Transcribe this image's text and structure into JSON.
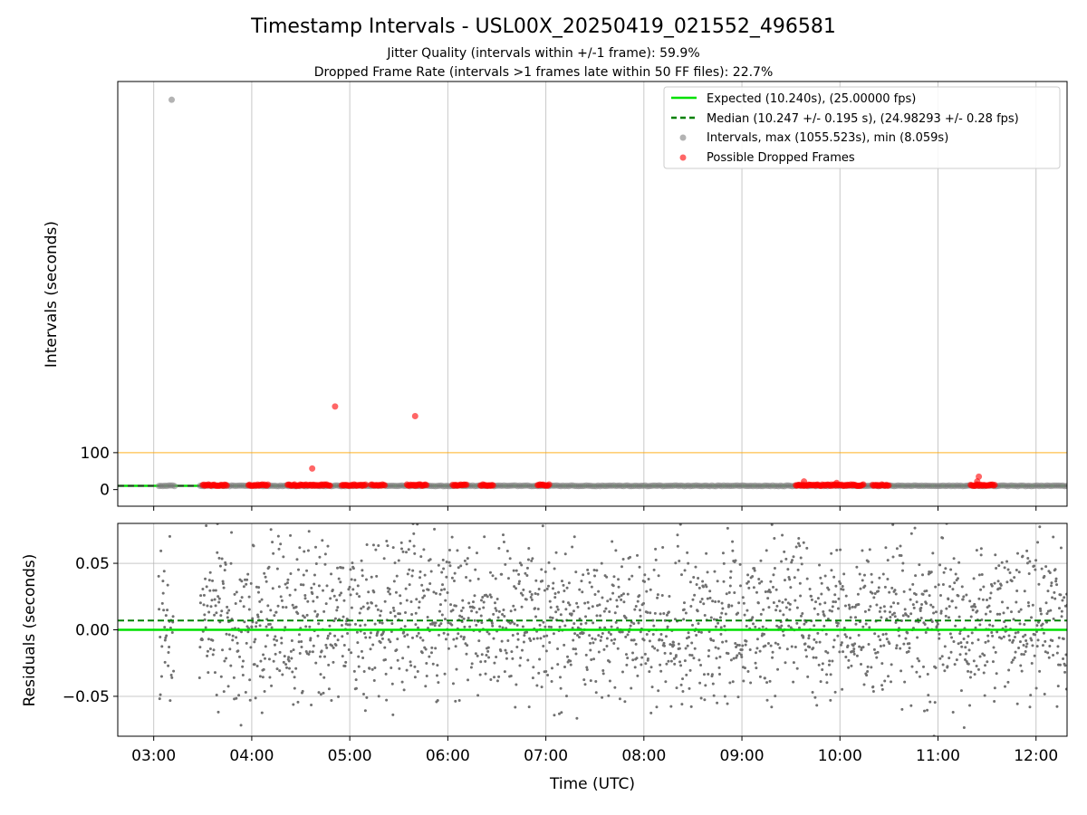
{
  "figure": {
    "title": "Timestamp Intervals - USL00X_20250419_021552_496581",
    "subtitle_1": "Jitter Quality (intervals within +/-1 frame): 59.9%",
    "subtitle_2": "Dropped Frame Rate (intervals >1 frames late within 50 FF files): 22.7%"
  },
  "colors": {
    "expected": "#00e000",
    "median": "#008000",
    "intervals": "#808080",
    "dropped": "#ff0000",
    "threshold": "#ffa500",
    "grid": "#b0b0b0"
  },
  "chart_data": [
    {
      "type": "scatter",
      "ylabel": "Intervals (seconds)",
      "xlim": [
        "02:38",
        "12:19"
      ],
      "ylim": [
        -45,
        1105
      ],
      "yticks": [
        0,
        100
      ],
      "ytick_labels": [
        "0",
        "100"
      ],
      "xticks": [
        "03:00",
        "04:00",
        "05:00",
        "06:00",
        "07:00",
        "08:00",
        "09:00",
        "10:00",
        "11:00",
        "12:00"
      ],
      "grid": "x",
      "legend": {
        "position": "top-right",
        "entries": [
          {
            "label": "Expected (10.240s), (25.00000 fps)",
            "style": "solid-line",
            "color": "#00e000"
          },
          {
            "label": "Median (10.247 +/- 0.195 s), (24.98293 +/- 0.28 fps)",
            "style": "dashed-line",
            "color": "#008000"
          },
          {
            "label": "Intervals, max (1055.523s), min (8.059s)",
            "style": "marker",
            "color": "#808080"
          },
          {
            "label": "Possible Dropped Frames",
            "style": "marker",
            "color": "#ff0000"
          }
        ]
      },
      "expected_interval": 10.24,
      "median_interval": 10.247,
      "threshold_line": 100,
      "intervals_max": {
        "x": "03:11",
        "y": 1055.523
      },
      "intervals_min": 8.059,
      "dropped_points": [
        {
          "x": "04:51",
          "y": 225
        },
        {
          "x": "05:40",
          "y": 199
        },
        {
          "x": "04:37",
          "y": 57
        },
        {
          "x": "09:38",
          "y": 22
        },
        {
          "x": "11:25",
          "y": 35
        },
        {
          "x": "11:24",
          "y": 22
        },
        {
          "x": "09:58",
          "y": 18
        }
      ],
      "dropped_clusters": [
        {
          "from": "03:30",
          "to": "03:45"
        },
        {
          "from": "03:58",
          "to": "04:10"
        },
        {
          "from": "04:22",
          "to": "04:48"
        },
        {
          "from": "04:55",
          "to": "05:10"
        },
        {
          "from": "05:13",
          "to": "05:22"
        },
        {
          "from": "05:35",
          "to": "05:47"
        },
        {
          "from": "06:03",
          "to": "06:12"
        },
        {
          "from": "06:20",
          "to": "06:28"
        },
        {
          "from": "06:55",
          "to": "07:02"
        },
        {
          "from": "09:33",
          "to": "10:15"
        },
        {
          "from": "10:20",
          "to": "10:30"
        },
        {
          "from": "11:20",
          "to": "11:35"
        }
      ]
    },
    {
      "type": "scatter",
      "ylabel": "Residuals (seconds)",
      "xlabel": "Time (UTC)",
      "xlim": [
        "02:38",
        "12:19"
      ],
      "ylim": [
        -0.08,
        0.08
      ],
      "yticks": [
        0.05,
        0.0,
        -0.05
      ],
      "ytick_labels": [
        "0.05",
        "0.00",
        "−0.05"
      ],
      "xticks": [
        "03:00",
        "04:00",
        "05:00",
        "06:00",
        "07:00",
        "08:00",
        "09:00",
        "10:00",
        "11:00",
        "12:00"
      ],
      "grid": "both",
      "expected_residual": 0.0,
      "median_residual": 0.007,
      "residual_segments": [
        {
          "from": "03:03",
          "to": "03:12"
        },
        {
          "from": "03:28",
          "to": "12:19"
        }
      ],
      "residual_spread": 0.04
    }
  ]
}
